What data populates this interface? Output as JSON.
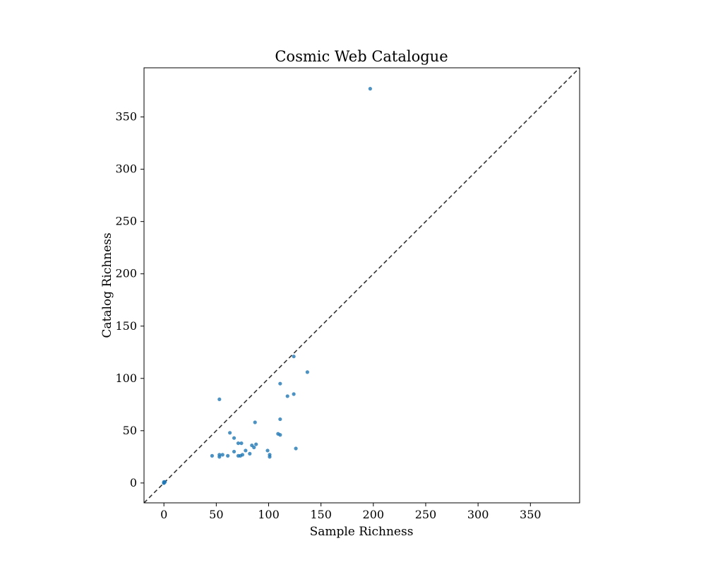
{
  "chart_data": {
    "type": "scatter",
    "title": "Cosmic Web Catalogue",
    "xlabel": "Sample Richness",
    "ylabel": "Catalog Richness",
    "xlim": [
      -19,
      397
    ],
    "ylim": [
      -19,
      397
    ],
    "xticks": [
      0,
      50,
      100,
      150,
      200,
      250,
      300,
      350
    ],
    "yticks": [
      0,
      50,
      100,
      150,
      200,
      250,
      300,
      350
    ],
    "grid": false,
    "legend": "none",
    "reference_line": "y = x",
    "colors": {
      "points": "#1f77b4",
      "reference_line": "#333333"
    },
    "points": [
      [
        197,
        377
      ],
      [
        53,
        80
      ],
      [
        124,
        121
      ],
      [
        137,
        106
      ],
      [
        111,
        95
      ],
      [
        124,
        85
      ],
      [
        118,
        83
      ],
      [
        111,
        61
      ],
      [
        87,
        58
      ],
      [
        63,
        48
      ],
      [
        109,
        47
      ],
      [
        111,
        46
      ],
      [
        67,
        43
      ],
      [
        71,
        38
      ],
      [
        74,
        38
      ],
      [
        84,
        36
      ],
      [
        88,
        37
      ],
      [
        86,
        34
      ],
      [
        126,
        33
      ],
      [
        78,
        31
      ],
      [
        99,
        31
      ],
      [
        67,
        30
      ],
      [
        82,
        28
      ],
      [
        101,
        27
      ],
      [
        101,
        25
      ],
      [
        46,
        26
      ],
      [
        53,
        27
      ],
      [
        56,
        27
      ],
      [
        61,
        26
      ],
      [
        53,
        25
      ],
      [
        71,
        26
      ],
      [
        73,
        26
      ],
      [
        75,
        27
      ],
      [
        0,
        0
      ],
      [
        0,
        0
      ],
      [
        1,
        1
      ],
      [
        0,
        1
      ]
    ]
  }
}
